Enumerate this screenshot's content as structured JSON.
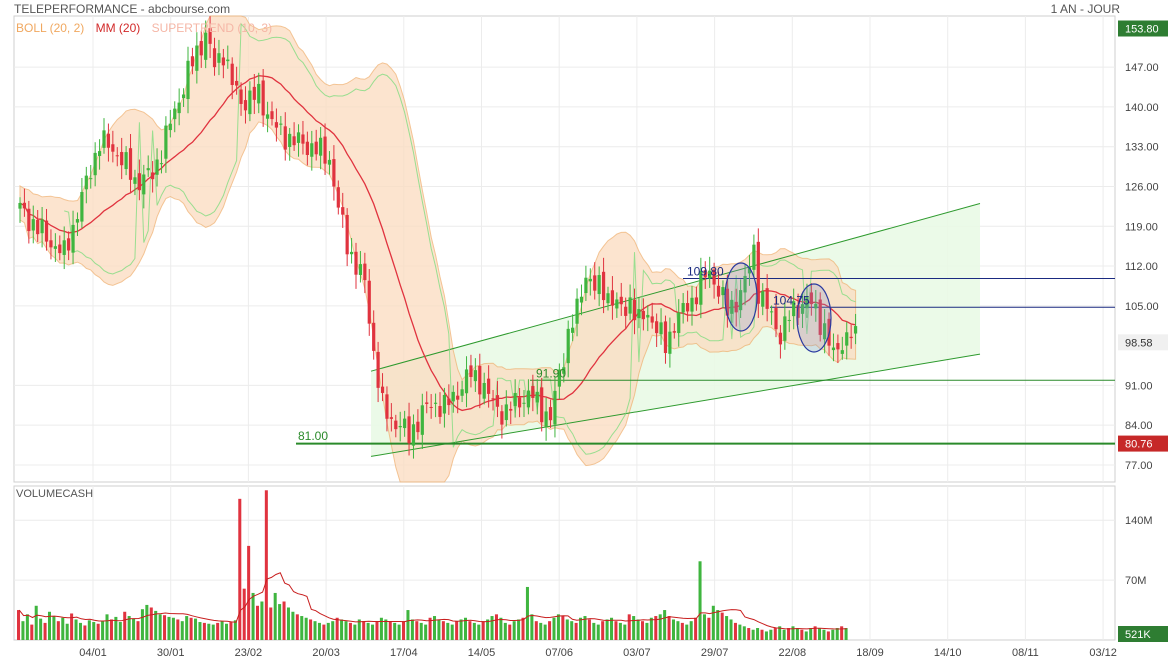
{
  "header": {
    "title": "TELEPERFORMANCE - abcbourse.com",
    "period": "1 AN - JOUR"
  },
  "legend": {
    "boll": "BOLL (20, 2)",
    "mm": "MM (20)",
    "supertrend": "SUPERTREND (10, 3)"
  },
  "colors": {
    "up_candle": "#3fb53f",
    "down_candle": "#e0333f",
    "mm_line": "#e0333f",
    "boll_fill": "#fbdcc0",
    "boll_line": "#f0b070",
    "supertrend": "#7fdc7f",
    "channel": "#2e9a2e",
    "channel_fill": "#e9f9e6",
    "level_navy": "#1a2a80",
    "level_green": "#2a8a2a",
    "last_price_bg": "#f0f0f0",
    "high_badge": "#2e7d32",
    "low_badge": "#c62828"
  },
  "chart_data": [
    {
      "type": "candlestick",
      "title": "",
      "x_tick_labels": [
        "04/01",
        "30/01",
        "23/02",
        "20/03",
        "17/04",
        "14/05",
        "07/06",
        "03/07",
        "29/07",
        "22/08",
        "18/09",
        "14/10",
        "08/11",
        "03/12"
      ],
      "y_tick_labels": [
        "147.00",
        "140.00",
        "133.00",
        "126.00",
        "119.00",
        "112.00",
        "105.00",
        "98.58",
        "91.00",
        "84.00",
        "77.00"
      ],
      "ylim": [
        74,
        156
      ],
      "badges": {
        "high": "153.80",
        "last": "98.58",
        "low": "80.76"
      },
      "annotations": {
        "level_1": "109.80",
        "level_2": "104.75",
        "level_3": "91.90",
        "level_4": "81.00"
      },
      "close_path": [
        [
          0,
          122
        ],
        [
          6,
          117
        ],
        [
          10,
          114
        ],
        [
          14,
          124
        ],
        [
          18,
          134
        ],
        [
          22,
          132
        ],
        [
          26,
          127
        ],
        [
          30,
          128
        ],
        [
          34,
          137
        ],
        [
          38,
          146
        ],
        [
          42,
          153
        ],
        [
          44,
          147
        ],
        [
          46,
          150
        ],
        [
          48,
          144
        ],
        [
          50,
          141
        ],
        [
          54,
          142
        ],
        [
          58,
          136
        ],
        [
          62,
          134
        ],
        [
          66,
          133
        ],
        [
          70,
          131
        ],
        [
          72,
          122
        ],
        [
          74,
          116
        ],
        [
          76,
          112
        ],
        [
          78,
          109
        ],
        [
          80,
          97
        ],
        [
          82,
          87
        ],
        [
          84,
          85
        ],
        [
          86,
          84
        ],
        [
          88,
          82
        ],
        [
          90,
          85
        ],
        [
          92,
          87
        ],
        [
          94,
          88
        ],
        [
          96,
          87
        ],
        [
          98,
          89
        ],
        [
          100,
          91
        ],
        [
          102,
          93
        ],
        [
          104,
          92
        ],
        [
          106,
          89
        ],
        [
          108,
          87
        ],
        [
          110,
          86
        ],
        [
          112,
          88
        ],
        [
          114,
          89
        ],
        [
          116,
          89
        ],
        [
          118,
          87
        ],
        [
          120,
          85
        ],
        [
          122,
          93
        ],
        [
          124,
          100
        ],
        [
          126,
          104
        ],
        [
          128,
          111
        ],
        [
          130,
          108
        ],
        [
          132,
          108
        ],
        [
          134,
          106
        ],
        [
          136,
          104
        ],
        [
          138,
          106
        ],
        [
          140,
          102
        ],
        [
          142,
          104
        ],
        [
          144,
          101
        ],
        [
          146,
          98
        ],
        [
          148,
          102
        ],
        [
          150,
          104
        ],
        [
          152,
          106
        ],
        [
          154,
          109
        ],
        [
          156,
          111
        ],
        [
          158,
          108
        ],
        [
          160,
          104
        ],
        [
          162,
          106
        ],
        [
          164,
          109
        ],
        [
          166,
          115
        ],
        [
          167,
          108
        ],
        [
          168,
          106
        ],
        [
          170,
          103
        ],
        [
          172,
          100
        ],
        [
          174,
          103
        ],
        [
          176,
          105
        ],
        [
          178,
          106
        ],
        [
          180,
          104
        ],
        [
          182,
          101
        ],
        [
          184,
          96
        ],
        [
          186,
          99
        ],
        [
          188,
          100
        ],
        [
          189,
          99
        ]
      ],
      "series": [
        {
          "name": "BOLL (20, 2)"
        },
        {
          "name": "MM (20)"
        },
        {
          "name": "SUPERTREND (10, 3)"
        }
      ]
    },
    {
      "type": "bar",
      "title": "VOLUMECASH",
      "y_tick_labels": [
        "140M",
        "70M"
      ],
      "ylim": [
        0,
        180
      ],
      "badges": {
        "last": "521K"
      },
      "values": [
        35,
        22,
        30,
        18,
        40,
        25,
        20,
        33,
        28,
        22,
        26,
        19,
        31,
        24,
        20,
        17,
        23,
        21,
        19,
        22,
        30,
        24,
        27,
        21,
        33,
        28,
        25,
        22,
        36,
        41,
        38,
        34,
        30,
        29,
        27,
        26,
        24,
        22,
        28,
        26,
        25,
        21,
        20,
        19,
        18,
        20,
        22,
        19,
        21,
        23,
        165,
        60,
        110,
        55,
        40,
        45,
        175,
        38,
        55,
        42,
        45,
        38,
        33,
        30,
        28,
        26,
        24,
        22,
        20,
        18,
        20,
        22,
        26,
        24,
        22,
        20,
        18,
        24,
        22,
        20,
        18,
        22,
        26,
        24,
        22,
        20,
        18,
        22,
        35,
        24,
        22,
        20,
        18,
        26,
        28,
        24,
        22,
        20,
        18,
        22,
        24,
        26,
        22,
        20,
        18,
        22,
        24,
        28,
        30,
        26,
        20,
        18,
        22,
        24,
        26,
        62,
        30,
        22,
        20,
        18,
        22,
        26,
        30,
        28,
        24,
        22,
        20,
        26,
        28,
        24,
        20,
        18,
        22,
        24,
        26,
        22,
        20,
        18,
        30,
        28,
        24,
        22,
        20,
        26,
        28,
        30,
        35,
        28,
        24,
        22,
        20,
        18,
        22,
        26,
        92,
        30,
        26,
        40,
        35,
        32,
        28,
        24,
        20,
        18,
        16,
        14,
        12,
        14,
        12,
        10,
        12,
        14,
        16,
        12,
        14,
        16,
        14,
        12,
        10,
        14,
        16,
        14,
        12,
        10,
        12,
        14,
        16,
        14
      ]
    }
  ]
}
